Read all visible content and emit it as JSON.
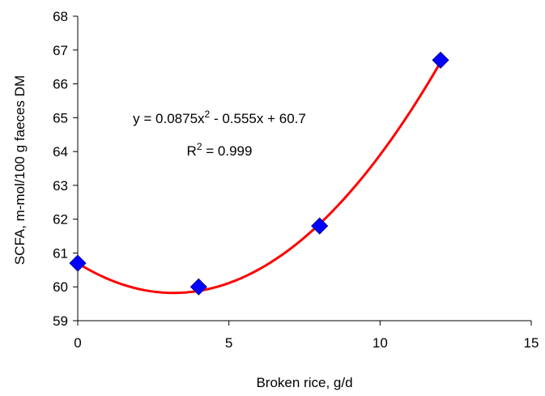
{
  "chart_data": {
    "type": "scatter",
    "title": "",
    "xlabel": "Broken rice, g/d",
    "ylabel": "SCFA, m-mol/100 g faeces DM",
    "xlim": [
      0,
      15
    ],
    "ylim": [
      59,
      68
    ],
    "x_ticks": [
      0,
      5,
      10,
      15
    ],
    "y_ticks": [
      59,
      60,
      61,
      62,
      63,
      64,
      65,
      66,
      67,
      68
    ],
    "grid": false,
    "legend": "none",
    "series": [
      {
        "x": [
          0,
          4,
          8,
          12
        ],
        "y": [
          60.7,
          60.0,
          61.8,
          66.7
        ],
        "marker": "diamond",
        "marker_color": "#0000ff"
      }
    ],
    "trendline": {
      "type": "polynomial",
      "coefficients": [
        0.0875,
        -0.555,
        60.7
      ],
      "x_range": [
        0,
        12
      ],
      "color": "#ff0000"
    },
    "annotations": {
      "equation": {
        "prefix": "y = 0.0875x",
        "exponent": "2",
        "suffix": " - 0.555x + 60.7"
      },
      "r_squared": {
        "prefix": "R",
        "exponent": "2",
        "suffix": " = 0.999"
      }
    }
  }
}
